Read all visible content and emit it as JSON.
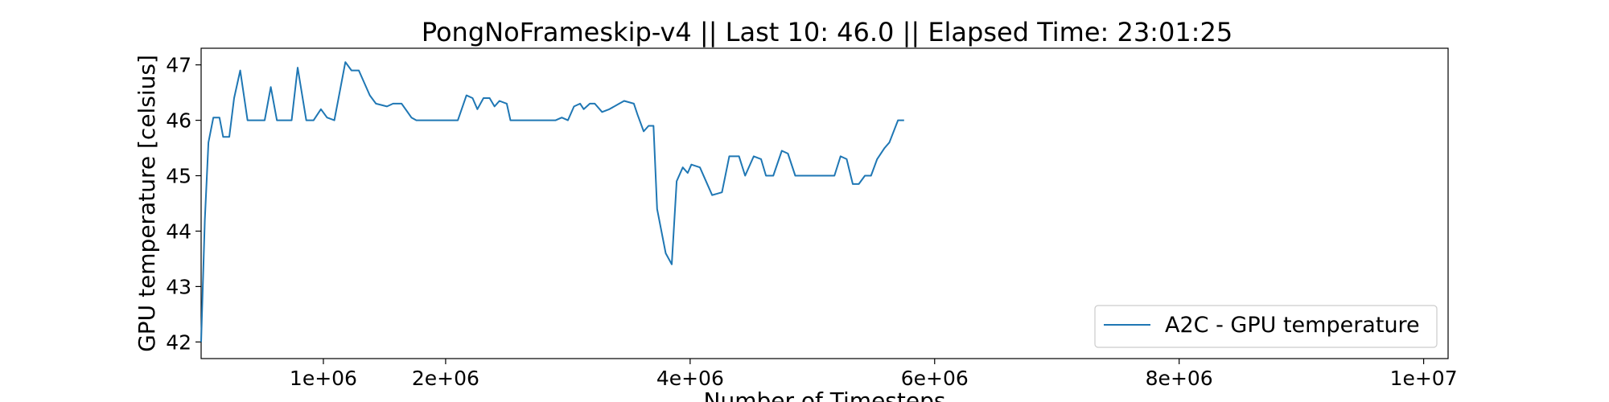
{
  "chart_data": {
    "type": "line",
    "title": "PongNoFrameskip-v4 || Last 10: 46.0 || Elapsed Time: 23:01:25",
    "xlabel": "Number of Timesteps",
    "ylabel": "GPU temperature [celsius]",
    "xlim": [
      0,
      10200000
    ],
    "ylim": [
      41.7,
      47.3
    ],
    "x_ticks": [
      {
        "value": 1000000,
        "label": "1e+06"
      },
      {
        "value": 2000000,
        "label": "2e+06"
      },
      {
        "value": 4000000,
        "label": "4e+06"
      },
      {
        "value": 6000000,
        "label": "6e+06"
      },
      {
        "value": 8000000,
        "label": "8e+06"
      },
      {
        "value": 10000000,
        "label": "1e+07"
      }
    ],
    "y_ticks": [
      {
        "value": 42,
        "label": "42"
      },
      {
        "value": 43,
        "label": "43"
      },
      {
        "value": 44,
        "label": "44"
      },
      {
        "value": 45,
        "label": "45"
      },
      {
        "value": 46,
        "label": "46"
      },
      {
        "value": 47,
        "label": "47"
      }
    ],
    "grid": false,
    "legend_position": "bottom-right",
    "series": [
      {
        "name": "A2C - GPU temperature",
        "color": "#1f77b4",
        "points": [
          [
            0,
            42.0
          ],
          [
            30000,
            44.2
          ],
          [
            60000,
            45.6
          ],
          [
            100000,
            46.05
          ],
          [
            150000,
            46.05
          ],
          [
            180000,
            45.7
          ],
          [
            230000,
            45.7
          ],
          [
            270000,
            46.4
          ],
          [
            320000,
            46.9
          ],
          [
            380000,
            46.0
          ],
          [
            520000,
            46.0
          ],
          [
            570000,
            46.6
          ],
          [
            620000,
            46.0
          ],
          [
            740000,
            46.0
          ],
          [
            790000,
            46.95
          ],
          [
            860000,
            46.0
          ],
          [
            920000,
            46.0
          ],
          [
            980000,
            46.2
          ],
          [
            1030000,
            46.05
          ],
          [
            1090000,
            46.0
          ],
          [
            1180000,
            47.05
          ],
          [
            1230000,
            46.9
          ],
          [
            1290000,
            46.9
          ],
          [
            1380000,
            46.45
          ],
          [
            1430000,
            46.3
          ],
          [
            1520000,
            46.25
          ],
          [
            1570000,
            46.3
          ],
          [
            1640000,
            46.3
          ],
          [
            1720000,
            46.05
          ],
          [
            1760000,
            46.0
          ],
          [
            2100000,
            46.0
          ],
          [
            2170000,
            46.45
          ],
          [
            2220000,
            46.4
          ],
          [
            2260000,
            46.2
          ],
          [
            2310000,
            46.4
          ],
          [
            2360000,
            46.4
          ],
          [
            2400000,
            46.25
          ],
          [
            2440000,
            46.35
          ],
          [
            2500000,
            46.3
          ],
          [
            2530000,
            46.0
          ],
          [
            2900000,
            46.0
          ],
          [
            2950000,
            46.05
          ],
          [
            3000000,
            46.0
          ],
          [
            3050000,
            46.25
          ],
          [
            3100000,
            46.3
          ],
          [
            3130000,
            46.2
          ],
          [
            3180000,
            46.3
          ],
          [
            3220000,
            46.3
          ],
          [
            3280000,
            46.15
          ],
          [
            3340000,
            46.2
          ],
          [
            3420000,
            46.3
          ],
          [
            3460000,
            46.35
          ],
          [
            3540000,
            46.3
          ],
          [
            3570000,
            46.1
          ],
          [
            3620000,
            45.8
          ],
          [
            3660000,
            45.9
          ],
          [
            3700000,
            45.9
          ],
          [
            3730000,
            44.4
          ],
          [
            3800000,
            43.6
          ],
          [
            3850000,
            43.4
          ],
          [
            3890000,
            44.9
          ],
          [
            3940000,
            45.15
          ],
          [
            3980000,
            45.05
          ],
          [
            4010000,
            45.2
          ],
          [
            4080000,
            45.15
          ],
          [
            4180000,
            44.65
          ],
          [
            4260000,
            44.7
          ],
          [
            4320000,
            45.35
          ],
          [
            4400000,
            45.35
          ],
          [
            4450000,
            45.0
          ],
          [
            4520000,
            45.35
          ],
          [
            4580000,
            45.3
          ],
          [
            4620000,
            45.0
          ],
          [
            4680000,
            45.0
          ],
          [
            4750000,
            45.45
          ],
          [
            4800000,
            45.4
          ],
          [
            4860000,
            45.0
          ],
          [
            5180000,
            45.0
          ],
          [
            5230000,
            45.35
          ],
          [
            5280000,
            45.3
          ],
          [
            5330000,
            44.85
          ],
          [
            5380000,
            44.85
          ],
          [
            5430000,
            45.0
          ],
          [
            5480000,
            45.0
          ],
          [
            5530000,
            45.3
          ],
          [
            5590000,
            45.5
          ],
          [
            5630000,
            45.6
          ],
          [
            5700000,
            46.0
          ],
          [
            5750000,
            46.0
          ]
        ]
      }
    ]
  }
}
